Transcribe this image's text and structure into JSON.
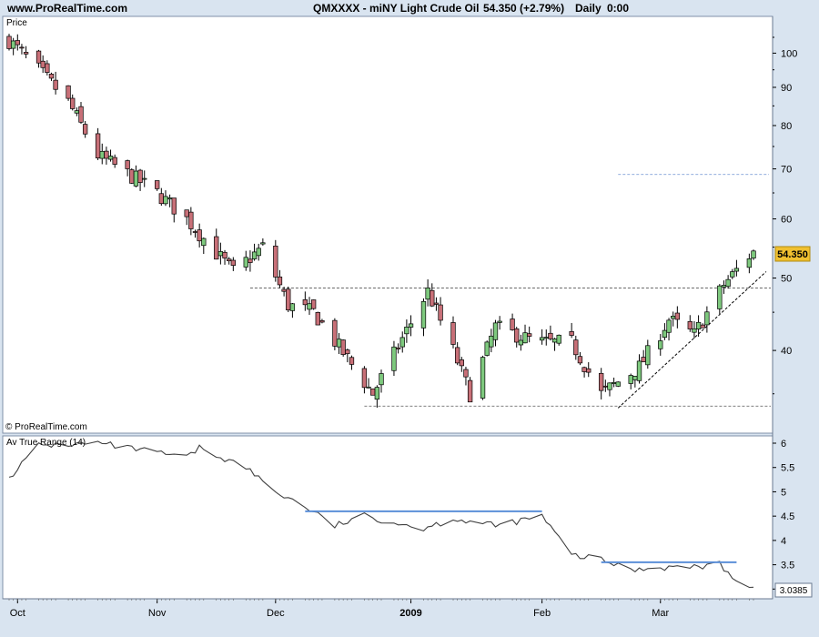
{
  "header": {
    "site": "www.ProRealTime.com",
    "instrument": "QMXXXX - miNY Light Crude Oil",
    "quote": "54.350 (+2.79%)",
    "period": "Daily",
    "time": "0:00"
  },
  "price_panel": {
    "label": "Price",
    "copyright": "© ProRealTime.com",
    "last_price_tag": "54.350"
  },
  "atr_panel": {
    "label": "Av True Range (14)",
    "last_value_tag": "3.0385"
  },
  "colors": {
    "background": "#d9e4f0",
    "panel": "#ffffff",
    "up_candle": "#7ec97e",
    "down_candle": "#c87078",
    "atr_line": "#404040",
    "atr_level_lines": "#5b8fd8",
    "target_line": "#6a8fd0",
    "price_tag": "#f0c030"
  },
  "chart_data": [
    {
      "type": "candlestick",
      "title": "Price",
      "yscale": "log",
      "ylim": [
        31,
        112
      ],
      "y_ticks": [
        40,
        50,
        60,
        70,
        80,
        90,
        100
      ],
      "x_tick_labels": [
        "Oct",
        "Nov",
        "Dec",
        "2009",
        "Feb",
        "Mar"
      ],
      "x_tick_dates": [
        "2008-10-01",
        "2008-11-03",
        "2008-12-01",
        "2009-01-02",
        "2009-02-02",
        "2009-03-02"
      ],
      "date_range": [
        "2008-09-29",
        "2009-03-24"
      ],
      "close_path": [
        [
          "2008-09-29",
          104
        ],
        [
          "2008-10-06",
          95
        ],
        [
          "2008-10-13",
          86
        ],
        [
          "2008-10-20",
          73
        ],
        [
          "2008-10-27",
          69
        ],
        [
          "2008-11-03",
          65
        ],
        [
          "2008-11-10",
          60
        ],
        [
          "2008-11-17",
          54
        ],
        [
          "2008-11-21",
          51
        ],
        [
          "2008-11-28",
          55
        ],
        [
          "2008-12-04",
          46
        ],
        [
          "2008-12-10",
          45
        ],
        [
          "2008-12-18",
          39
        ],
        [
          "2008-12-24",
          35
        ],
        [
          "2009-01-06",
          48
        ],
        [
          "2009-01-12",
          40
        ],
        [
          "2009-01-16",
          35
        ],
        [
          "2009-01-22",
          43
        ],
        [
          "2009-02-01",
          41
        ],
        [
          "2009-02-09",
          41
        ],
        [
          "2009-02-16",
          35
        ],
        [
          "2009-02-25",
          38
        ],
        [
          "2009-03-04",
          44
        ],
        [
          "2009-03-10",
          42
        ],
        [
          "2009-03-17",
          49
        ],
        [
          "2009-03-24",
          54.35
        ]
      ],
      "last_price": 54.35,
      "horizontal_lines": [
        {
          "name": "resistance",
          "value": 48.5,
          "from": "2008-11-25",
          "to": "2009-03-24",
          "style": "dashed"
        },
        {
          "name": "support",
          "value": 33.7,
          "from": "2008-12-22",
          "to": "2009-03-24",
          "style": "dashed"
        },
        {
          "name": "target",
          "value": 68.8,
          "from": "2009-02-20",
          "to": "2009-03-24",
          "style": "dashed"
        }
      ],
      "trend_line": {
        "from": [
          "2009-02-20",
          33.5
        ],
        "to": [
          "2009-03-27",
          51
        ]
      }
    },
    {
      "type": "line",
      "title": "Av True Range (14)",
      "ylim": [
        2.8,
        6.15
      ],
      "y_ticks": [
        3,
        3.5,
        4,
        4.5,
        5,
        5.5,
        6
      ],
      "points": [
        [
          "2008-09-29",
          5.3
        ],
        [
          "2008-10-06",
          5.95
        ],
        [
          "2008-10-20",
          6.0
        ],
        [
          "2008-11-03",
          5.8
        ],
        [
          "2008-11-10",
          5.7
        ],
        [
          "2008-11-13",
          5.9
        ],
        [
          "2008-11-24",
          5.5
        ],
        [
          "2008-12-01",
          5.0
        ],
        [
          "2008-12-08",
          4.7
        ],
        [
          "2008-12-15",
          4.3
        ],
        [
          "2008-12-22",
          4.5
        ],
        [
          "2009-01-05",
          4.25
        ],
        [
          "2009-01-12",
          4.45
        ],
        [
          "2009-01-22",
          4.3
        ],
        [
          "2009-02-02",
          4.5
        ],
        [
          "2009-02-09",
          3.7
        ],
        [
          "2009-02-16",
          3.6
        ],
        [
          "2009-02-23",
          3.4
        ],
        [
          "2009-03-02",
          3.45
        ],
        [
          "2009-03-09",
          3.45
        ],
        [
          "2009-03-16",
          3.5
        ],
        [
          "2009-03-20",
          3.2
        ],
        [
          "2009-03-24",
          3.0385
        ]
      ],
      "last_value": 3.0385,
      "level_lines": [
        {
          "value": 4.6,
          "from": "2008-12-08",
          "to": "2009-02-02"
        },
        {
          "value": 3.55,
          "from": "2009-02-16",
          "to": "2009-03-20"
        }
      ]
    }
  ]
}
